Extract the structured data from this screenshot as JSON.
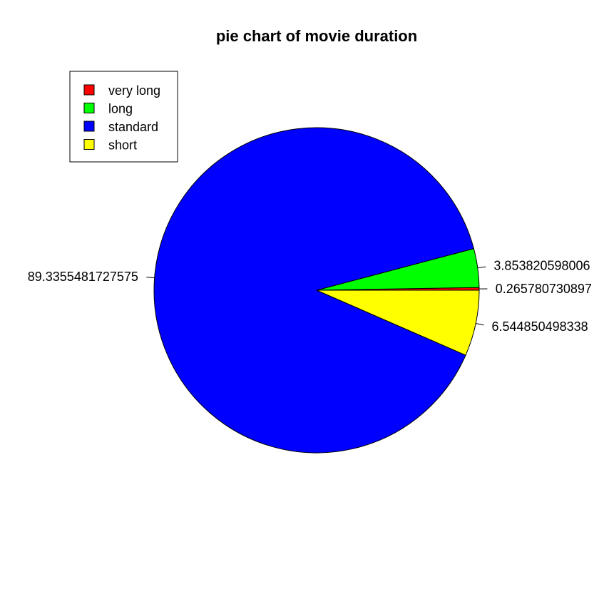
{
  "chart_data": {
    "type": "pie",
    "title": "pie chart of movie duration",
    "slices": [
      {
        "name": "very long",
        "value": 0.265780730897,
        "label": "0.265780730897",
        "color": "#ff0000"
      },
      {
        "name": "long",
        "value": 3.853820598006,
        "label": "3.853820598006",
        "color": "#00ff00"
      },
      {
        "name": "standard",
        "value": 89.3355481727575,
        "label": "89.3355481727575",
        "color": "#0000ff"
      },
      {
        "name": "short",
        "value": 6.544850498338,
        "label": "6.544850498338",
        "color": "#ffff00"
      }
    ],
    "legend": {
      "position": "top-left",
      "entries": [
        "very long",
        "long",
        "standard",
        "short"
      ]
    }
  }
}
